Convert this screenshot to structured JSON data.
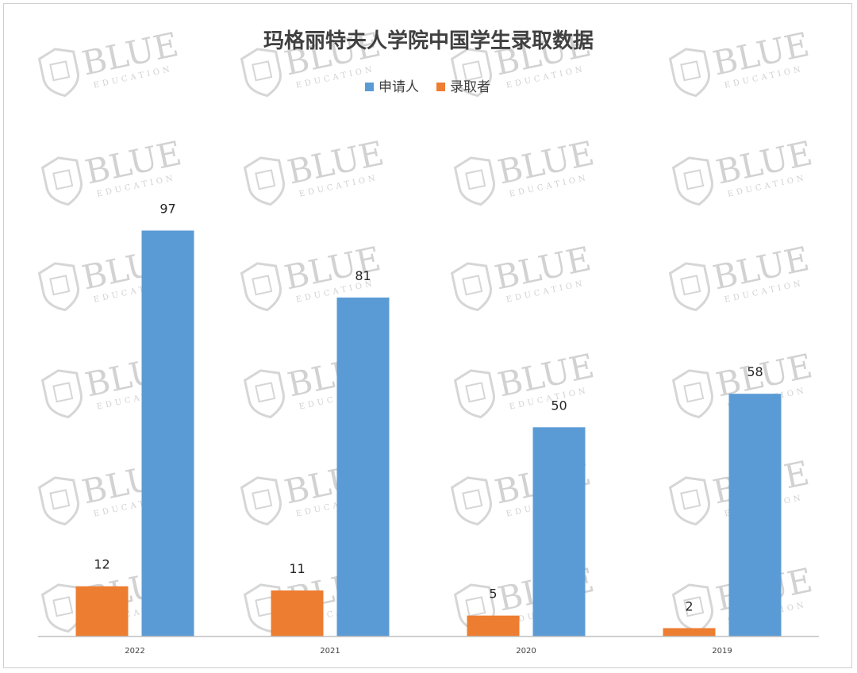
{
  "chart_data": {
    "type": "bar",
    "title": "玛格丽特夫人学院中国学生录取数据",
    "categories": [
      "2022",
      "2021",
      "2020",
      "2019"
    ],
    "series": [
      {
        "name": "申请人",
        "values": [
          97,
          81,
          50,
          58
        ],
        "color": "#5b9bd5"
      },
      {
        "name": "录取者",
        "values": [
          12,
          11,
          5,
          2
        ],
        "color": "#ed7d31"
      }
    ],
    "ylim": [
      0,
      100
    ],
    "grid": false,
    "legend_position": "top-center",
    "data_labels": true
  },
  "watermark": {
    "text": "BLUE",
    "subtext": "EDUCATION",
    "icon": "shield-icon"
  }
}
